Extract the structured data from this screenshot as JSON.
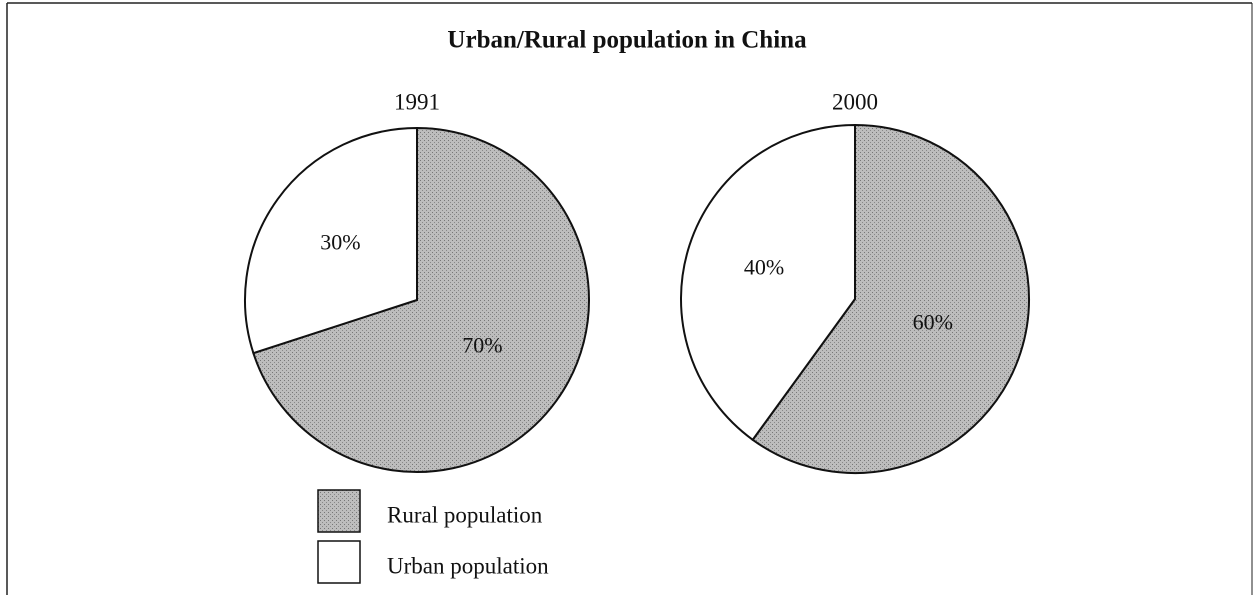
{
  "title": "Urban/Rural population in China",
  "legend": [
    "Rural population",
    "Urban population"
  ],
  "colors": [
    "#b4b4b4",
    "#ffffff"
  ],
  "chart_data": [
    {
      "type": "pie",
      "title": "1991",
      "values": [
        70,
        30
      ],
      "value_labels": [
        "70%",
        "30%"
      ]
    },
    {
      "type": "pie",
      "title": "2000",
      "values": [
        60,
        40
      ],
      "value_labels": [
        "60%",
        "40%"
      ]
    }
  ]
}
